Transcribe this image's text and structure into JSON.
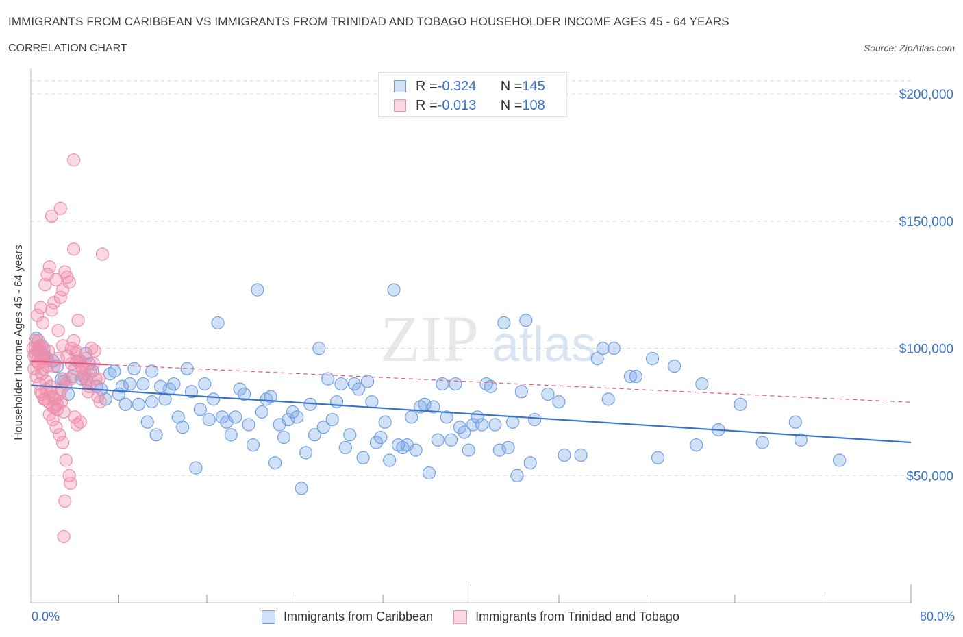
{
  "title": "IMMIGRANTS FROM CARIBBEAN VS IMMIGRANTS FROM TRINIDAD AND TOBAGO HOUSEHOLDER INCOME AGES 45 - 64 YEARS",
  "subtitle": "CORRELATION CHART",
  "source": "Source: ZipAtlas.com",
  "watermark": {
    "zip": "ZIP",
    "atlas": "atlas"
  },
  "colors": {
    "blue": "#3a73c6",
    "blue_fill": "rgba(120,165,230,0.35)",
    "blue_stroke": "#6f9fe0",
    "pink": "#e0577f",
    "pink_fill": "rgba(240,140,170,0.35)",
    "pink_stroke": "#ec8fad",
    "grid": "#d8d8d8",
    "axis_text": "#3a73c6"
  },
  "legend_top": {
    "rows": [
      {
        "r_label": "R = ",
        "r_value": "-0.324",
        "n_label": "N = ",
        "n_value": "145",
        "series": "blue"
      },
      {
        "r_label": "R = ",
        "r_value": "-0.013",
        "n_label": "N = ",
        "n_value": "108",
        "series": "pink"
      }
    ]
  },
  "chart_data": {
    "type": "scatter",
    "title": "",
    "xlabel": "",
    "ylabel": "Householder Income Ages 45 - 64 years",
    "xlim": [
      0,
      80
    ],
    "ylim": [
      0,
      210000
    ],
    "x_tick_labels": {
      "left": "0.0%",
      "right": "80.0%"
    },
    "y_ticks": [
      {
        "value": 50000,
        "label": "$50,000"
      },
      {
        "value": 100000,
        "label": "$100,000"
      },
      {
        "value": 150000,
        "label": "$150,000"
      },
      {
        "value": 200000,
        "label": "$200,000"
      }
    ],
    "grid": true,
    "series": [
      {
        "name": "Immigrants from Caribbean",
        "color": "blue",
        "trend": {
          "x": [
            0,
            80
          ],
          "y": [
            85500,
            63000
          ],
          "style": "solid"
        },
        "points": [
          [
            0.5,
            104000
          ],
          [
            0.8,
            99000
          ],
          [
            1.0,
            101000
          ],
          [
            1.2,
            97000
          ],
          [
            1.5,
            96000
          ],
          [
            2.0,
            95000
          ],
          [
            2.4,
            93000
          ],
          [
            2.8,
            88000
          ],
          [
            3.0,
            87000
          ],
          [
            3.4,
            82000
          ],
          [
            3.8,
            89000
          ],
          [
            4.2,
            95000
          ],
          [
            4.6,
            88000
          ],
          [
            5.0,
            98000
          ],
          [
            5.3,
            94000
          ],
          [
            5.6,
            91000
          ],
          [
            6.0,
            85000
          ],
          [
            6.4,
            84000
          ],
          [
            6.8,
            80000
          ],
          [
            7.2,
            90000
          ],
          [
            7.6,
            91000
          ],
          [
            8.0,
            82000
          ],
          [
            8.3,
            85000
          ],
          [
            8.6,
            78000
          ],
          [
            9.0,
            86000
          ],
          [
            9.4,
            92000
          ],
          [
            9.8,
            78000
          ],
          [
            10.2,
            86000
          ],
          [
            10.6,
            71000
          ],
          [
            11.0,
            79000
          ],
          [
            11.4,
            66000
          ],
          [
            11.8,
            85000
          ],
          [
            12.2,
            80000
          ],
          [
            12.6,
            84000
          ],
          [
            13.0,
            86000
          ],
          [
            13.4,
            73000
          ],
          [
            13.8,
            69000
          ],
          [
            14.2,
            92000
          ],
          [
            14.6,
            83000
          ],
          [
            15.0,
            53000
          ],
          [
            15.4,
            76000
          ],
          [
            15.8,
            86000
          ],
          [
            16.2,
            72000
          ],
          [
            16.6,
            80000
          ],
          [
            17.0,
            110000
          ],
          [
            17.4,
            73000
          ],
          [
            17.8,
            71000
          ],
          [
            18.2,
            66000
          ],
          [
            18.6,
            73000
          ],
          [
            19.0,
            84000
          ],
          [
            19.4,
            82000
          ],
          [
            19.8,
            70000
          ],
          [
            20.2,
            62000
          ],
          [
            20.6,
            123000
          ],
          [
            21.0,
            75000
          ],
          [
            21.4,
            80000
          ],
          [
            21.8,
            81000
          ],
          [
            22.2,
            55000
          ],
          [
            22.6,
            70000
          ],
          [
            23.0,
            65000
          ],
          [
            23.4,
            72000
          ],
          [
            23.8,
            75000
          ],
          [
            24.2,
            73000
          ],
          [
            24.6,
            45000
          ],
          [
            25.0,
            59000
          ],
          [
            25.4,
            78000
          ],
          [
            25.8,
            66000
          ],
          [
            26.2,
            100000
          ],
          [
            26.6,
            69000
          ],
          [
            27.0,
            88000
          ],
          [
            27.4,
            72000
          ],
          [
            27.8,
            79000
          ],
          [
            28.2,
            86000
          ],
          [
            28.6,
            61000
          ],
          [
            29.0,
            66000
          ],
          [
            29.4,
            86000
          ],
          [
            29.8,
            84000
          ],
          [
            30.2,
            57000
          ],
          [
            30.6,
            87000
          ],
          [
            31.0,
            79000
          ],
          [
            31.4,
            63000
          ],
          [
            31.8,
            65000
          ],
          [
            32.2,
            71000
          ],
          [
            32.6,
            56000
          ],
          [
            33.0,
            123000
          ],
          [
            33.4,
            62000
          ],
          [
            33.8,
            61000
          ],
          [
            34.2,
            62000
          ],
          [
            34.6,
            73000
          ],
          [
            35.0,
            60000
          ],
          [
            35.4,
            77000
          ],
          [
            35.8,
            78000
          ],
          [
            36.2,
            51000
          ],
          [
            36.6,
            77000
          ],
          [
            37.0,
            64000
          ],
          [
            37.4,
            86000
          ],
          [
            37.8,
            73000
          ],
          [
            38.2,
            64000
          ],
          [
            38.6,
            86000
          ],
          [
            39.0,
            69000
          ],
          [
            39.4,
            67000
          ],
          [
            39.8,
            60000
          ],
          [
            40.2,
            70000
          ],
          [
            40.6,
            73000
          ],
          [
            41.0,
            70000
          ],
          [
            41.4,
            86000
          ],
          [
            41.8,
            85000
          ],
          [
            42.2,
            70000
          ],
          [
            42.6,
            60000
          ],
          [
            43.0,
            110000
          ],
          [
            43.4,
            61000
          ],
          [
            43.8,
            71000
          ],
          [
            44.2,
            50000
          ],
          [
            44.6,
            83000
          ],
          [
            45.0,
            111000
          ],
          [
            45.4,
            55000
          ],
          [
            45.8,
            72000
          ],
          [
            47.0,
            82000
          ],
          [
            48.0,
            79000
          ],
          [
            48.5,
            58000
          ],
          [
            50.0,
            58000
          ],
          [
            51.5,
            96000
          ],
          [
            52.0,
            100000
          ],
          [
            52.5,
            80000
          ],
          [
            53.0,
            100000
          ],
          [
            54.5,
            89000
          ],
          [
            55.0,
            89000
          ],
          [
            56.5,
            96000
          ],
          [
            57.0,
            57000
          ],
          [
            58.5,
            93000
          ],
          [
            60.5,
            62000
          ],
          [
            61.0,
            86000
          ],
          [
            62.5,
            68000
          ],
          [
            64.5,
            78000
          ],
          [
            66.5,
            63000
          ],
          [
            69.5,
            71000
          ],
          [
            70.0,
            64000
          ],
          [
            73.5,
            56000
          ],
          [
            5.0,
            88000
          ],
          [
            11.0,
            91000
          ]
        ]
      },
      {
        "name": "Immigrants from Trinidad and Tobago",
        "color": "pink",
        "trend": {
          "x": [
            0,
            80
          ],
          "y": [
            95000,
            78800
          ],
          "style": "solid-then-dashed",
          "solid_until_x": 7
        },
        "points": [
          [
            0.2,
            100000
          ],
          [
            0.3,
            97000
          ],
          [
            0.4,
            103000
          ],
          [
            0.5,
            95000
          ],
          [
            0.6,
            99000
          ],
          [
            0.7,
            94000
          ],
          [
            0.8,
            101000
          ],
          [
            0.9,
            96000
          ],
          [
            1.0,
            98000
          ],
          [
            1.1,
            92000
          ],
          [
            1.2,
            100000
          ],
          [
            1.3,
            97000
          ],
          [
            1.4,
            95000
          ],
          [
            1.5,
            93000
          ],
          [
            0.3,
            92000
          ],
          [
            0.5,
            89000
          ],
          [
            0.8,
            86000
          ],
          [
            1.0,
            82000
          ],
          [
            1.2,
            80000
          ],
          [
            1.4,
            84000
          ],
          [
            1.6,
            79000
          ],
          [
            1.8,
            83000
          ],
          [
            2.0,
            81000
          ],
          [
            2.2,
            77000
          ],
          [
            2.4,
            76000
          ],
          [
            2.6,
            82000
          ],
          [
            2.8,
            79000
          ],
          [
            3.0,
            75000
          ],
          [
            0.6,
            113000
          ],
          [
            0.9,
            116000
          ],
          [
            1.1,
            110000
          ],
          [
            1.3,
            125000
          ],
          [
            1.5,
            129000
          ],
          [
            1.7,
            132000
          ],
          [
            1.9,
            115000
          ],
          [
            2.1,
            118000
          ],
          [
            2.3,
            127000
          ],
          [
            2.5,
            107000
          ],
          [
            2.7,
            120000
          ],
          [
            2.9,
            123000
          ],
          [
            3.1,
            130000
          ],
          [
            3.3,
            128000
          ],
          [
            3.5,
            126000
          ],
          [
            3.7,
            100000
          ],
          [
            3.9,
            103000
          ],
          [
            4.1,
            98000
          ],
          [
            4.3,
            111000
          ],
          [
            4.5,
            95000
          ],
          [
            4.7,
            92000
          ],
          [
            4.9,
            90000
          ],
          [
            5.1,
            87000
          ],
          [
            5.3,
            85000
          ],
          [
            5.5,
            100000
          ],
          [
            5.7,
            94000
          ],
          [
            5.9,
            88000
          ],
          [
            6.1,
            81000
          ],
          [
            6.3,
            79000
          ],
          [
            6.5,
            137000
          ],
          [
            1.9,
            152000
          ],
          [
            2.7,
            155000
          ],
          [
            3.9,
            139000
          ],
          [
            3.9,
            174000
          ],
          [
            3.0,
            88000
          ],
          [
            2.0,
            72000
          ],
          [
            2.3,
            69000
          ],
          [
            2.6,
            66000
          ],
          [
            2.9,
            63000
          ],
          [
            3.2,
            56000
          ],
          [
            3.5,
            50000
          ],
          [
            3.6,
            47000
          ],
          [
            3.1,
            40000
          ],
          [
            3.0,
            26000
          ],
          [
            4.0,
            73000
          ],
          [
            4.5,
            71000
          ],
          [
            4.2,
            70000
          ],
          [
            1.7,
            74000
          ],
          [
            2.0,
            77000
          ],
          [
            1.0,
            90000
          ],
          [
            1.4,
            87000
          ],
          [
            1.8,
            85000
          ],
          [
            2.2,
            80000
          ],
          [
            2.4,
            78000
          ],
          [
            2.8,
            84000
          ],
          [
            3.2,
            86000
          ],
          [
            3.6,
            88000
          ],
          [
            4.0,
            92000
          ],
          [
            4.4,
            95000
          ],
          [
            4.8,
            89000
          ],
          [
            5.2,
            83000
          ],
          [
            0.4,
            98000
          ],
          [
            0.7,
            103000
          ],
          [
            1.1,
            96000
          ],
          [
            1.6,
            99000
          ],
          [
            2.1,
            93000
          ],
          [
            2.5,
            96000
          ],
          [
            2.9,
            101000
          ],
          [
            3.3,
            97000
          ],
          [
            3.7,
            94000
          ],
          [
            4.1,
            99000
          ],
          [
            4.6,
            93000
          ],
          [
            5.0,
            96000
          ],
          [
            5.4,
            91000
          ],
          [
            5.8,
            99000
          ],
          [
            6.2,
            88000
          ],
          [
            0.9,
            83000
          ],
          [
            1.3,
            80000
          ],
          [
            0.4,
            100000
          ],
          [
            0.8,
            101000
          ]
        ]
      }
    ]
  },
  "legend_bottom": [
    {
      "label": "Immigrants from Caribbean",
      "series": "blue"
    },
    {
      "label": "Immigrants from Trinidad and Tobago",
      "series": "pink"
    }
  ]
}
